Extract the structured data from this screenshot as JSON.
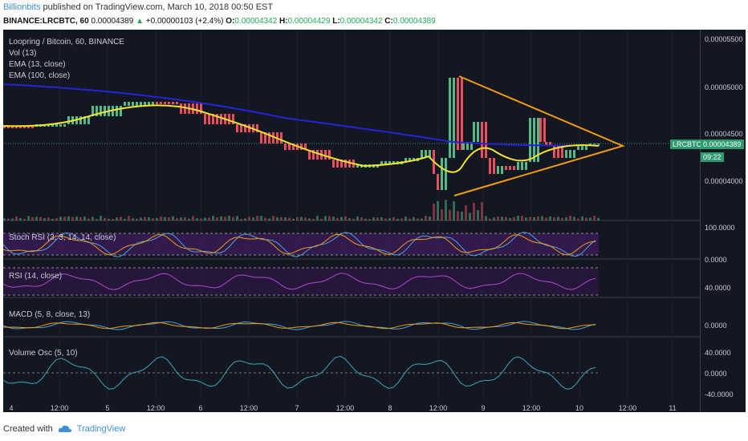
{
  "header": {
    "author": "Billionbits",
    "published_text": "published on TradingView.com, March 10, 2018 00:50 EST",
    "symbol": "BINANCE:LRCBTC, 60",
    "last": "0.00004389",
    "change_arrow": "▲",
    "change": "+0.00000103 (+2.4%)",
    "o_label": "O:",
    "o": "0.00004342",
    "h_label": "H:",
    "h": "0.00004429",
    "l_label": "L:",
    "l": "0.00004342",
    "c_label": "C:",
    "c": "0.00004389"
  },
  "panes": {
    "main_title": "Loopring / Bitcoin, 60, BINANCE",
    "vol": "Vol (13)",
    "ema13": "EMA (13, close)",
    "ema100": "EMA (100, close)",
    "stoch": "Stoch RSI (3, 3, 14, 14, close)",
    "rsi": "RSI (14, close)",
    "macd": "MACD (5, 8, close, 13)",
    "vosc": "Volume Osc (5, 10)"
  },
  "price_axis": [
    "0.00005500",
    "0.00005000",
    "0.00004500",
    "0.00004000"
  ],
  "stoch_axis": [
    "100.0000",
    "0.0000"
  ],
  "rsi_axis": [
    "40.0000"
  ],
  "macd_axis": [
    "0.0000"
  ],
  "vosc_axis": [
    "40.0000",
    "0.0000",
    "-40.0000"
  ],
  "time_axis": [
    "4",
    "12:00",
    "5",
    "12:00",
    "6",
    "12:00",
    "7",
    "12:00",
    "8",
    "12:00",
    "9",
    "12:00",
    "10",
    "12:00",
    "11"
  ],
  "price_badge": {
    "symbol": "LRCBTC",
    "price": "0.00004389",
    "countdown": "09:22"
  },
  "footer": {
    "created_with": "Created with",
    "brand": "TradingView"
  },
  "colors": {
    "ema13": "#f5e42e",
    "ema100": "#2424d6",
    "triangle": "#f39c12",
    "up": "#53b987",
    "down": "#eb4d5c",
    "badge": "#2e9b6f"
  }
}
